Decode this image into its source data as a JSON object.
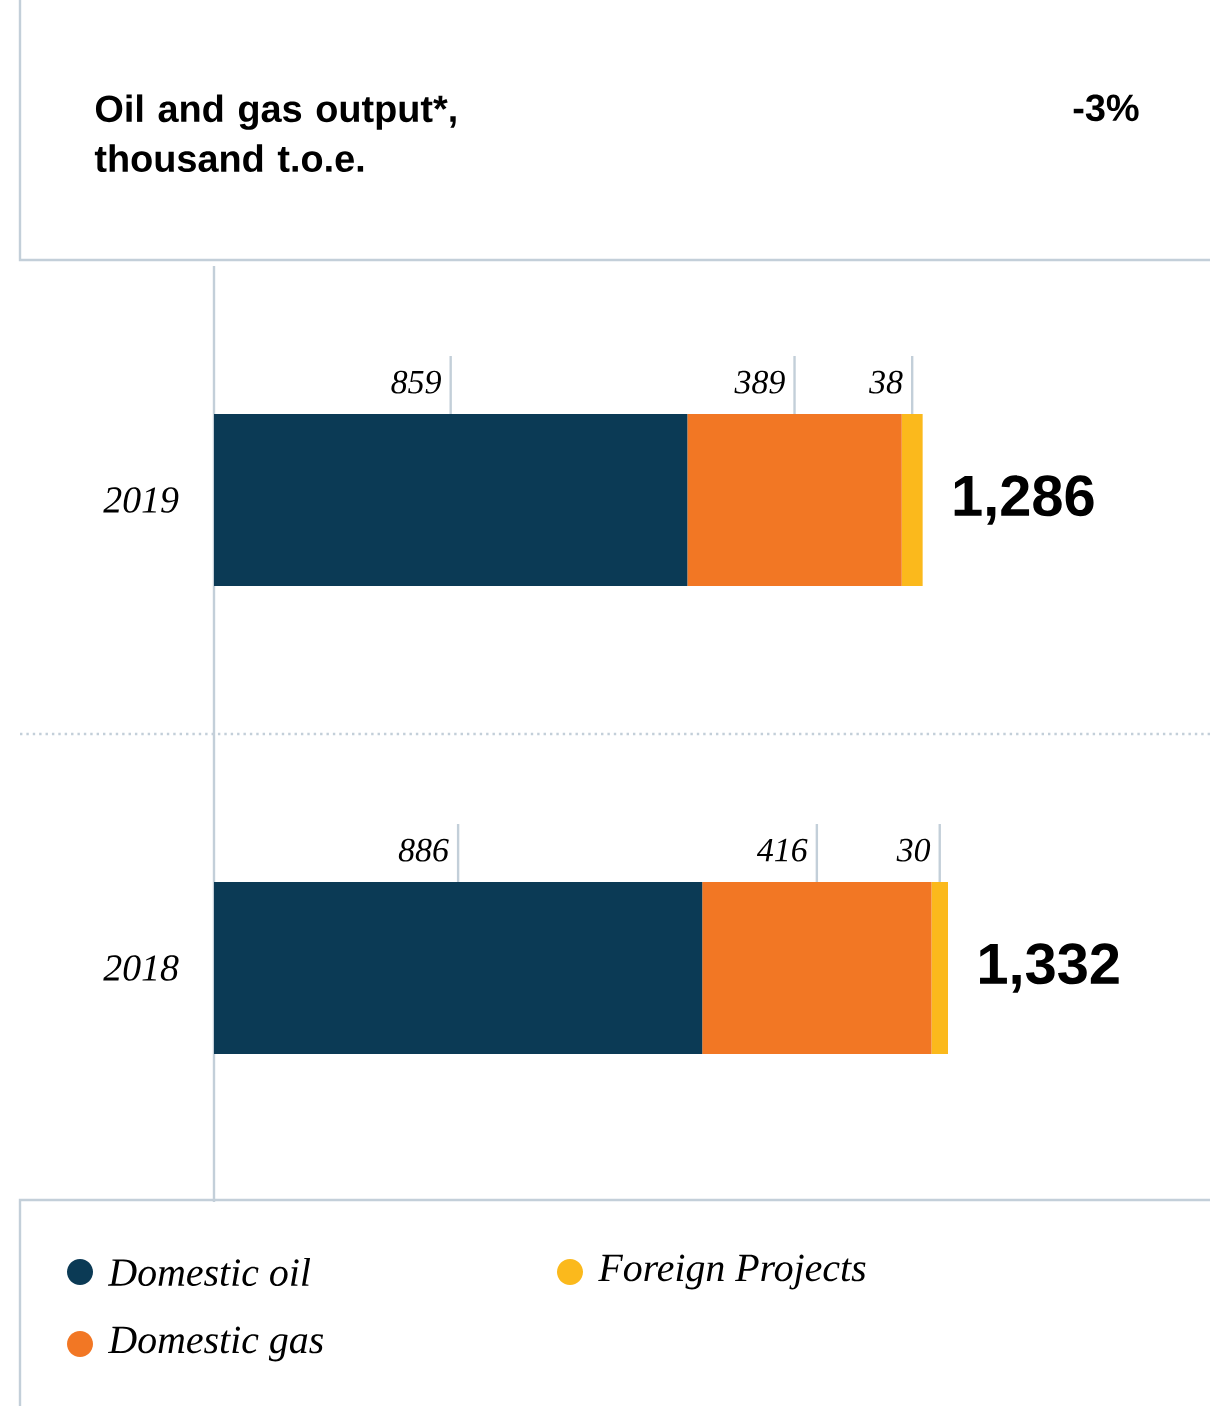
{
  "chart_data": {
    "type": "bar",
    "orientation": "horizontal",
    "stacked": true,
    "title": "Oil and gas output*, thousand t.o.e.",
    "annotations": [
      "-3%"
    ],
    "categories": [
      "2019",
      "2018"
    ],
    "series": [
      {
        "name": "Domestic oil",
        "color": "#0b3a55",
        "values": [
          859,
          886
        ]
      },
      {
        "name": "Domestic gas",
        "color": "#f27724",
        "values": [
          389,
          416
        ]
      },
      {
        "name": "Foreign Projects",
        "color": "#fbb91c",
        "values": [
          38,
          30
        ]
      }
    ],
    "data_labels": true,
    "totals": [
      "1,286",
      "1,332"
    ],
    "legend": "bottom"
  }
}
